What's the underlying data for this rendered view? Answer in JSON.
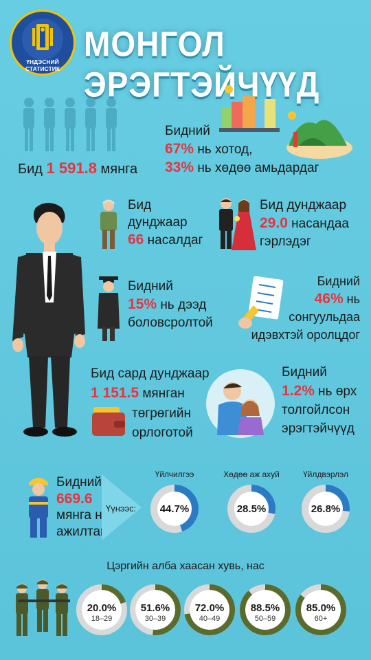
{
  "header": {
    "title": "МОНГОЛ ЭРЭГТЭЙЧҮҮД",
    "logo_line1": "ҮНДЭСНИЙ",
    "logo_line2": "СТАТИСТИК"
  },
  "population": {
    "prefix": "Бид",
    "value": "1 591.8",
    "suffix": "мянга"
  },
  "residence": {
    "line1": "Бидний",
    "urban_value": "67%",
    "urban_text": "нь хотод,",
    "rural_value": "33%",
    "rural_text": "нь хөдөө амьдардаг"
  },
  "age": {
    "line1": "Бид",
    "line2": "дунджаар",
    "value": "66",
    "suffix": "насалдаг"
  },
  "marriage": {
    "line1": "Бид дунджаар",
    "value": "29.0",
    "suffix": "насандаа",
    "line3": "гэрлэдэг"
  },
  "education": {
    "line1": "Бидний",
    "value": "15%",
    "suffix": "нь дээд",
    "line3": "боловсролтой"
  },
  "election": {
    "line1": "Бидний",
    "value": "46%",
    "suffix": "нь",
    "line3": "сонгуульдаа",
    "line4": "идэвхтэй оролцдог"
  },
  "income": {
    "line1": "Бид сард дунджаар",
    "value": "1 151.5",
    "suffix": "мянган",
    "line3": "төгрөгийн",
    "line4": "орлоготой"
  },
  "single_father": {
    "line1": "Бидний",
    "value": "1.2%",
    "suffix": "нь өрх",
    "line3": "толгойлсон",
    "line4": "эрэгтэйчүүд"
  },
  "employment": {
    "line1": "Бидний",
    "value": "669.6",
    "line3": "мянга нь",
    "line4": "ажилтай",
    "arrow_label": "Үүнээс:",
    "sectors": [
      {
        "label": "Үйлчилгээ",
        "value": 44.7,
        "text": "44.7%"
      },
      {
        "label": "Хөдөө аж ахуй",
        "value": 28.5,
        "text": "28.5%"
      },
      {
        "label": "Үйлдвэрлэл",
        "value": 26.8,
        "text": "26.8%"
      }
    ]
  },
  "military": {
    "title": "Цэргийн алба хаасан хувь, нас",
    "groups": [
      {
        "value": 20.0,
        "text": "20.0%",
        "age": "18–29"
      },
      {
        "value": 51.6,
        "text": "51.6%",
        "age": "30–39"
      },
      {
        "value": 72.0,
        "text": "72.0%",
        "age": "40–49"
      },
      {
        "value": 88.5,
        "text": "88.5%",
        "age": "50–59"
      },
      {
        "value": 85.0,
        "text": "85.0%",
        "age": "60+"
      }
    ]
  },
  "colors": {
    "accent_red": "#e8333f",
    "donut_blue": "#2b7bc4",
    "donut_green": "#5b6b2b",
    "donut_track": "#d9d9d9"
  }
}
